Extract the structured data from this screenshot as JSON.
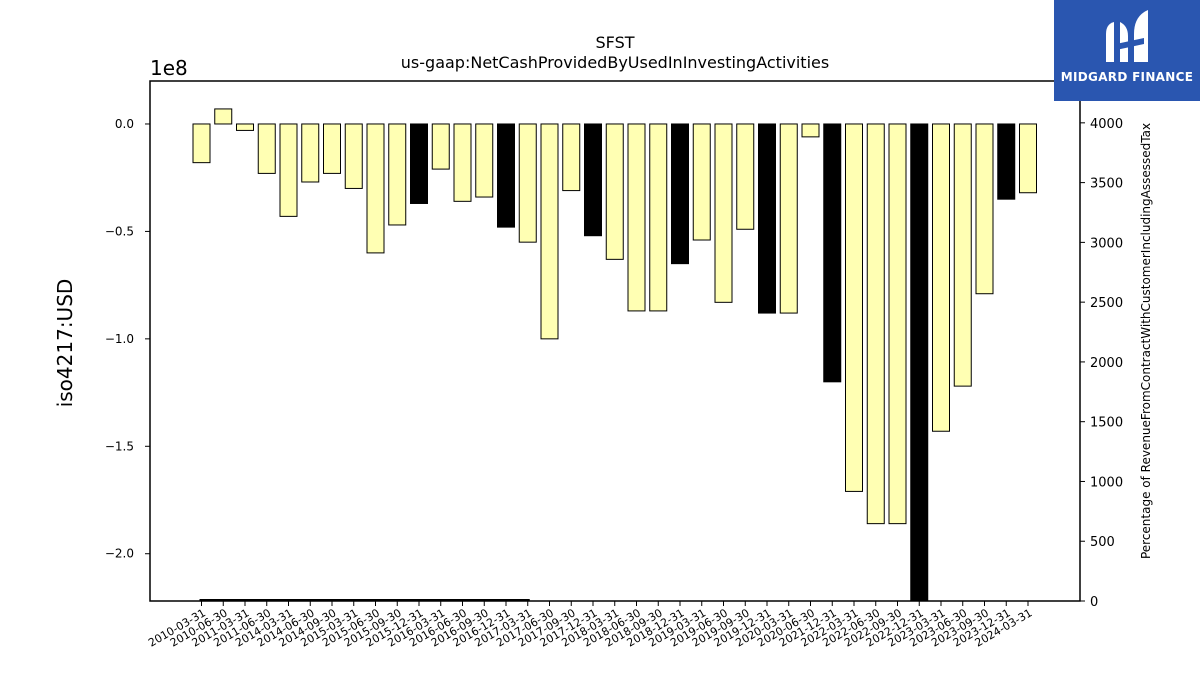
{
  "logo": {
    "text": "MIDGARD FINANCE",
    "color": "#2a56b0"
  },
  "chart_data": {
    "type": "bar",
    "title": "SFST",
    "subtitle": "us-gaap:NetCashProvidedByUsedInInvestingActivities",
    "ylabel": "iso4217:USD",
    "y_offset_label": "1e8",
    "y2label": "Percentage of RevenueFromContractWithCustomerIncludingAssessedTax",
    "ylim": [
      -2.22,
      0.2
    ],
    "y2lim": [
      0,
      4350
    ],
    "yticks": [
      0.0,
      -0.5,
      -1.0,
      -1.5,
      -2.0
    ],
    "ytick_labels": [
      "0.0",
      "−0.5",
      "−1.0",
      "−1.5",
      "−2.0"
    ],
    "y2ticks": [
      0,
      500,
      1000,
      1500,
      2000,
      2500,
      3000,
      3500,
      4000
    ],
    "colors": {
      "normal": "#ffffb3",
      "highlight": "#000000",
      "edge": "#000000"
    },
    "categories": [
      "2010-03-31",
      "2010-06-30",
      "2011-03-31",
      "2011-06-30",
      "2014-03-31",
      "2014-06-30",
      "2014-09-30",
      "2015-03-31",
      "2015-06-30",
      "2015-09-30",
      "2015-12-31",
      "2016-03-31",
      "2016-06-30",
      "2016-09-30",
      "2016-12-31",
      "2017-03-31",
      "2017-06-30",
      "2017-09-30",
      "2017-12-31",
      "2018-03-31",
      "2018-06-30",
      "2018-09-30",
      "2018-12-31",
      "2019-03-31",
      "2019-06-30",
      "2019-09-30",
      "2019-12-31",
      "2020-03-31",
      "2020-06-30",
      "2021-12-31",
      "2022-03-31",
      "2022-06-30",
      "2022-09-30",
      "2022-12-31",
      "2023-03-31",
      "2023-06-30",
      "2023-09-30",
      "2023-12-31",
      "2024-03-31"
    ],
    "series": [
      {
        "values": [
          -0.18,
          0.07,
          -0.03,
          -0.23,
          -0.43,
          -0.27,
          -0.23,
          -0.3,
          -0.6,
          -0.47,
          -0.37,
          -0.21,
          -0.36,
          -0.34,
          -0.48,
          -0.55,
          -1.0,
          -0.31,
          -0.52,
          -0.63,
          -0.87,
          -0.87,
          -0.65,
          -0.54,
          -0.83,
          -0.49,
          -0.88,
          -0.88,
          -0.06,
          -1.2,
          -1.71,
          -1.86,
          -1.86,
          -2.22,
          -1.43,
          -1.22,
          -0.79,
          -0.35,
          -0.32
        ],
        "highlight": [
          false,
          false,
          false,
          false,
          false,
          false,
          false,
          false,
          false,
          false,
          true,
          false,
          false,
          false,
          true,
          false,
          false,
          false,
          true,
          false,
          false,
          false,
          true,
          false,
          false,
          false,
          true,
          false,
          false,
          true,
          false,
          false,
          false,
          true,
          false,
          false,
          false,
          true,
          false
        ]
      }
    ],
    "secondary_line": {
      "start_index": 0,
      "end_index": 15,
      "value": 0
    }
  }
}
